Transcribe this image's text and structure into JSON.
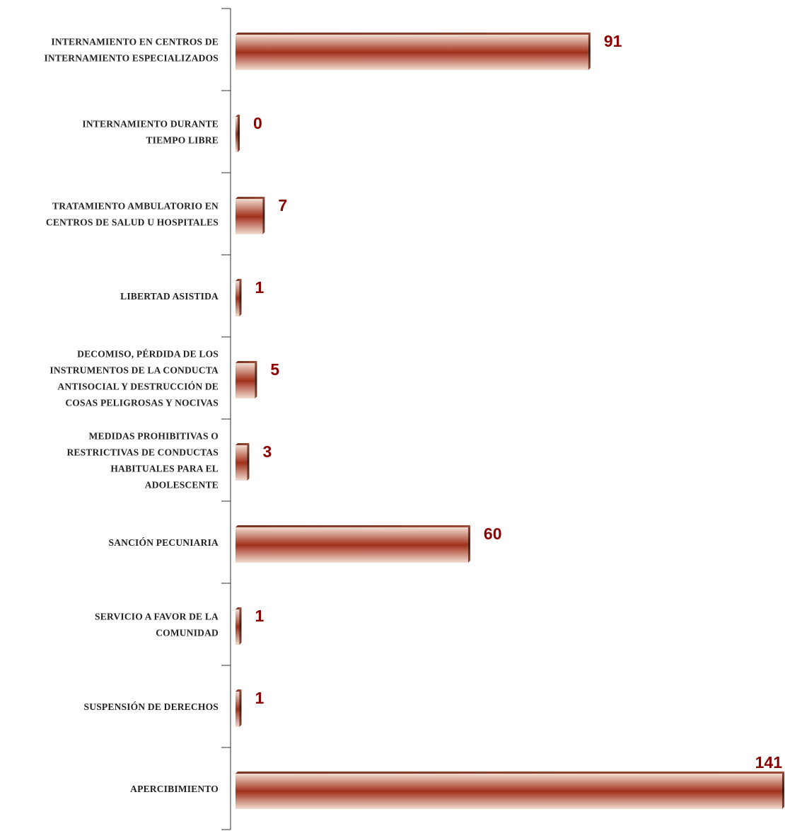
{
  "chart_data": {
    "type": "bar",
    "orientation": "horizontal",
    "categories": [
      [
        "INTERNAMIENTO EN CENTROS DE",
        "INTERNAMIENTO ESPECIALIZADOS"
      ],
      [
        "INTERNAMIENTO DURANTE",
        "TIEMPO LIBRE"
      ],
      [
        "TRATAMIENTO AMBULATORIO EN",
        "CENTROS DE SALUD U HOSPITALES"
      ],
      [
        "LIBERTAD ASISTIDA"
      ],
      [
        "DECOMISO, PÉRDIDA DE LOS",
        "INSTRUMENTOS DE LA CONDUCTA",
        "ANTISOCIAL Y DESTRUCCIÓN DE",
        "COSAS PELIGROSAS Y NOCIVAS"
      ],
      [
        "MEDIDAS PROHIBITIVAS O",
        "RESTRICTIVAS DE CONDUCTAS",
        "HABITUALES PARA EL",
        "ADOLESCENTE"
      ],
      [
        "SANCIÓN PECUNIARIA"
      ],
      [
        "SERVICIO A FAVOR DE LA",
        "COMUNIDAD"
      ],
      [
        "SUSPENSIÓN DE DERECHOS"
      ],
      [
        "APERCIBIMIENTO"
      ]
    ],
    "values": [
      91,
      0,
      7,
      1,
      5,
      3,
      60,
      1,
      1,
      141
    ],
    "data_labels": [
      "91",
      "0",
      "7",
      "1",
      "5",
      "3",
      "60",
      "1",
      "1",
      "141"
    ],
    "xlim": [
      0,
      141
    ],
    "grid": false,
    "legend": "none",
    "colors": {
      "bar_dark": "#a0301a",
      "bar_light": "#f3ddd3",
      "bar_end": "#5a2518",
      "value_text": "#8b0000",
      "axis": "#333333"
    }
  }
}
